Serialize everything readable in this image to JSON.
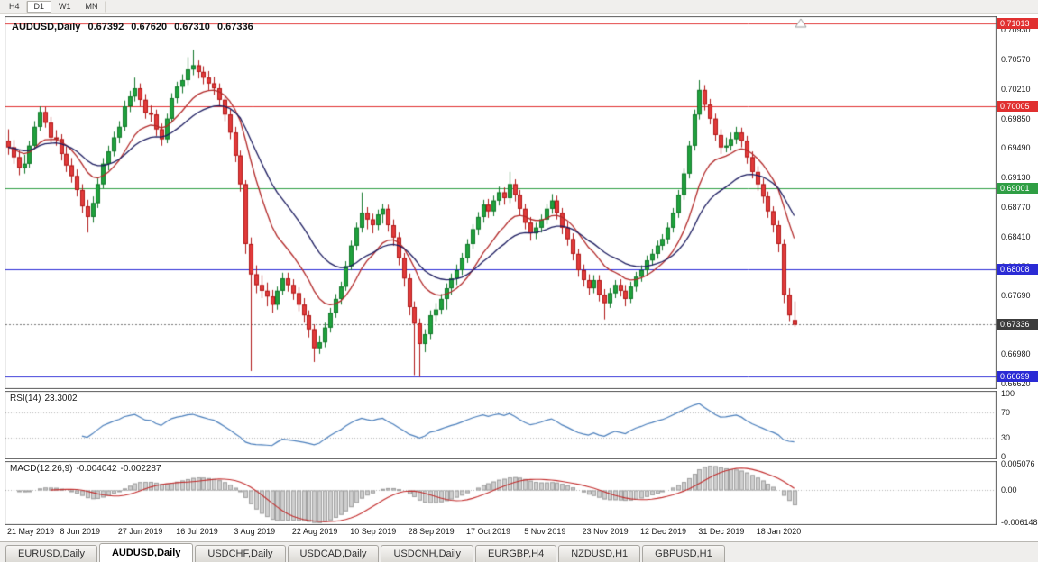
{
  "toolbar": {
    "timeframes": [
      "H4",
      "D1",
      "W1",
      "MN"
    ],
    "active": "D1"
  },
  "chart": {
    "symbol_line": {
      "symbol": "AUDUSD,Daily",
      "open": "0.67392",
      "high": "0.67620",
      "low": "0.67310",
      "close": "0.67336"
    }
  },
  "chart_data": {
    "type": "candlestick",
    "title": "AUDUSD,Daily",
    "y_range": [
      0.6655,
      0.711
    ],
    "y_ticks": [
      "0.70930",
      "0.70570",
      "0.70210",
      "0.69850",
      "0.69490",
      "0.69130",
      "0.68770",
      "0.68410",
      "0.68050",
      "0.67690",
      "0.67330",
      "0.66980",
      "0.66620"
    ],
    "x_labels": [
      {
        "label": "21 May 2019",
        "bar": 0
      },
      {
        "label": "8 Jun 2019",
        "bar": 10
      },
      {
        "label": "27 Jun 2019",
        "bar": 21
      },
      {
        "label": "16 Jul 2019",
        "bar": 32
      },
      {
        "label": "3 Aug 2019",
        "bar": 43
      },
      {
        "label": "22 Aug 2019",
        "bar": 54
      },
      {
        "label": "10 Sep 2019",
        "bar": 65
      },
      {
        "label": "28 Sep 2019",
        "bar": 76
      },
      {
        "label": "17 Oct 2019",
        "bar": 87
      },
      {
        "label": "5 Nov 2019",
        "bar": 98
      },
      {
        "label": "23 Nov 2019",
        "bar": 109
      },
      {
        "label": "12 Dec 2019",
        "bar": 120
      },
      {
        "label": "31 Dec 2019",
        "bar": 131
      },
      {
        "label": "18 Jan 2020",
        "bar": 142
      }
    ],
    "colors": {
      "up": "#1fa23d",
      "up_border": "#12772a",
      "down": "#e13b3b",
      "down_border": "#b01818"
    },
    "levels": [
      {
        "price": 0.71013,
        "label": "0.71013",
        "color": "#e03030"
      },
      {
        "price": 0.70005,
        "label": "0.70005",
        "color": "#e03030"
      },
      {
        "price": 0.69001,
        "label": "0.69001",
        "color": "#2f9e44"
      },
      {
        "price": 0.68008,
        "label": "0.68008",
        "color": "#2b2bd5"
      },
      {
        "price": 0.66699,
        "label": "0.66699",
        "color": "#2b2bd5"
      }
    ],
    "current_price": {
      "price": 0.67336,
      "label": "0.67336",
      "color": "#3c3c3c",
      "line_color": "#777777"
    },
    "moving_averages": [
      {
        "type": "ema",
        "period": 12,
        "color": "#b22828"
      },
      {
        "type": "ema",
        "period": 24,
        "color": "#1c1c60"
      }
    ],
    "subcharts": [
      {
        "type": "line",
        "name": "rsi",
        "label": "RSI(14)",
        "value": "23.3002",
        "period": 14,
        "levels": [
          70,
          30
        ],
        "range": [
          0,
          100
        ],
        "y_ticks": [
          "100",
          "70",
          "30",
          "0"
        ],
        "color": "#4a7ebb"
      },
      {
        "type": "macd",
        "name": "macd",
        "label": "MACD(12,26,9)",
        "value_main": "-0.004042",
        "value_signal": "-0.002287",
        "params": [
          12,
          26,
          9
        ],
        "range": [
          -0.006148,
          0.005076
        ],
        "y_ticks": [
          "0.005076",
          "0.00",
          "-0.006148"
        ],
        "hist_color": "#cfcfcf",
        "hist_border": "#a0a0a0",
        "signal_color": "#c22b2b"
      }
    ],
    "candles": [
      [
        0.6958,
        0.6972,
        0.6941,
        0.695
      ],
      [
        0.695,
        0.6959,
        0.693,
        0.6938
      ],
      [
        0.6938,
        0.6946,
        0.6916,
        0.6925
      ],
      [
        0.6925,
        0.6941,
        0.6918,
        0.693
      ],
      [
        0.693,
        0.6958,
        0.6925,
        0.6952
      ],
      [
        0.6952,
        0.6982,
        0.6948,
        0.6975
      ],
      [
        0.6975,
        0.7,
        0.697,
        0.6993
      ],
      [
        0.6993,
        0.6999,
        0.6974,
        0.698
      ],
      [
        0.698,
        0.6987,
        0.6955,
        0.6962
      ],
      [
        0.6962,
        0.6971,
        0.6952,
        0.696
      ],
      [
        0.696,
        0.6966,
        0.6934,
        0.6942
      ],
      [
        0.6942,
        0.6951,
        0.692,
        0.6928
      ],
      [
        0.6928,
        0.6937,
        0.6907,
        0.6915
      ],
      [
        0.6915,
        0.6923,
        0.689,
        0.6898
      ],
      [
        0.6898,
        0.6905,
        0.687,
        0.6878
      ],
      [
        0.6878,
        0.6886,
        0.6846,
        0.6865
      ],
      [
        0.6865,
        0.689,
        0.6858,
        0.6882
      ],
      [
        0.6882,
        0.6912,
        0.6876,
        0.6905
      ],
      [
        0.6905,
        0.6937,
        0.69,
        0.693
      ],
      [
        0.693,
        0.6952,
        0.6922,
        0.6945
      ],
      [
        0.6945,
        0.6969,
        0.6939,
        0.6962
      ],
      [
        0.6962,
        0.6982,
        0.6955,
        0.6975
      ],
      [
        0.6975,
        0.7007,
        0.697,
        0.7
      ],
      [
        0.7,
        0.7019,
        0.6993,
        0.7012
      ],
      [
        0.7012,
        0.7035,
        0.7006,
        0.7022
      ],
      [
        0.7022,
        0.7028,
        0.7,
        0.7008
      ],
      [
        0.7008,
        0.7015,
        0.6985,
        0.6992
      ],
      [
        0.6992,
        0.7001,
        0.6981,
        0.699
      ],
      [
        0.699,
        0.6996,
        0.6964,
        0.6972
      ],
      [
        0.6972,
        0.6979,
        0.6952,
        0.696
      ],
      [
        0.696,
        0.6991,
        0.6955,
        0.6985
      ],
      [
        0.6985,
        0.7016,
        0.698,
        0.701
      ],
      [
        0.701,
        0.703,
        0.7004,
        0.7024
      ],
      [
        0.7024,
        0.7039,
        0.7016,
        0.7032
      ],
      [
        0.7032,
        0.706,
        0.7026,
        0.7045
      ],
      [
        0.7045,
        0.7069,
        0.7038,
        0.705
      ],
      [
        0.705,
        0.7056,
        0.7034,
        0.7042
      ],
      [
        0.7042,
        0.7049,
        0.7027,
        0.7035
      ],
      [
        0.7035,
        0.7043,
        0.702,
        0.7028
      ],
      [
        0.7028,
        0.7036,
        0.7014,
        0.7022
      ],
      [
        0.7022,
        0.7028,
        0.7,
        0.7008
      ],
      [
        0.7008,
        0.7014,
        0.6982,
        0.699
      ],
      [
        0.699,
        0.6996,
        0.696,
        0.6968
      ],
      [
        0.6968,
        0.6975,
        0.6932,
        0.694
      ],
      [
        0.694,
        0.6946,
        0.6896,
        0.6905
      ],
      [
        0.6905,
        0.691,
        0.682,
        0.6832
      ],
      [
        0.6832,
        0.684,
        0.6677,
        0.6795
      ],
      [
        0.6795,
        0.6806,
        0.6772,
        0.6782
      ],
      [
        0.6782,
        0.6794,
        0.6766,
        0.6775
      ],
      [
        0.6775,
        0.6785,
        0.6756,
        0.6768
      ],
      [
        0.6768,
        0.6776,
        0.6748,
        0.6758
      ],
      [
        0.6758,
        0.678,
        0.6752,
        0.6775
      ],
      [
        0.6775,
        0.6797,
        0.677,
        0.679
      ],
      [
        0.679,
        0.6797,
        0.6774,
        0.6782
      ],
      [
        0.6782,
        0.6789,
        0.6764,
        0.6772
      ],
      [
        0.6772,
        0.6779,
        0.675,
        0.6758
      ],
      [
        0.6758,
        0.6766,
        0.6736,
        0.6745
      ],
      [
        0.6745,
        0.6751,
        0.6718,
        0.6728
      ],
      [
        0.6728,
        0.6734,
        0.6688,
        0.6705
      ],
      [
        0.6705,
        0.672,
        0.6698,
        0.6712
      ],
      [
        0.6712,
        0.6736,
        0.6706,
        0.673
      ],
      [
        0.673,
        0.6754,
        0.6724,
        0.6748
      ],
      [
        0.6748,
        0.6771,
        0.6742,
        0.6765
      ],
      [
        0.6765,
        0.6786,
        0.6758,
        0.678
      ],
      [
        0.678,
        0.6811,
        0.6775,
        0.6805
      ],
      [
        0.6805,
        0.6836,
        0.68,
        0.683
      ],
      [
        0.683,
        0.6858,
        0.6824,
        0.6852
      ],
      [
        0.6852,
        0.6895,
        0.6846,
        0.687
      ],
      [
        0.687,
        0.6877,
        0.685,
        0.6862
      ],
      [
        0.6862,
        0.6869,
        0.6845,
        0.6855
      ],
      [
        0.6855,
        0.6874,
        0.6849,
        0.6868
      ],
      [
        0.6868,
        0.6881,
        0.6857,
        0.6875
      ],
      [
        0.6875,
        0.688,
        0.6847,
        0.6855
      ],
      [
        0.6855,
        0.6862,
        0.683,
        0.684
      ],
      [
        0.684,
        0.6846,
        0.6806,
        0.6815
      ],
      [
        0.6815,
        0.6821,
        0.678,
        0.679
      ],
      [
        0.679,
        0.6796,
        0.6745,
        0.6755
      ],
      [
        0.6755,
        0.6762,
        0.6672,
        0.6735
      ],
      [
        0.6735,
        0.6741,
        0.667,
        0.671
      ],
      [
        0.671,
        0.6728,
        0.67,
        0.6722
      ],
      [
        0.6722,
        0.6751,
        0.6716,
        0.6745
      ],
      [
        0.6745,
        0.676,
        0.6738,
        0.6752
      ],
      [
        0.6752,
        0.6771,
        0.6746,
        0.6765
      ],
      [
        0.6765,
        0.6784,
        0.6752,
        0.6778
      ],
      [
        0.6778,
        0.6796,
        0.677,
        0.679
      ],
      [
        0.679,
        0.6807,
        0.6782,
        0.68
      ],
      [
        0.68,
        0.6821,
        0.6794,
        0.6815
      ],
      [
        0.6815,
        0.6838,
        0.6809,
        0.6832
      ],
      [
        0.6832,
        0.6856,
        0.6826,
        0.685
      ],
      [
        0.685,
        0.6871,
        0.6843,
        0.6865
      ],
      [
        0.6865,
        0.6886,
        0.6858,
        0.688
      ],
      [
        0.688,
        0.6887,
        0.6864,
        0.6872
      ],
      [
        0.6872,
        0.6891,
        0.6866,
        0.6885
      ],
      [
        0.6885,
        0.6902,
        0.6879,
        0.6895
      ],
      [
        0.6895,
        0.6901,
        0.688,
        0.6888
      ],
      [
        0.6888,
        0.692,
        0.6882,
        0.6905
      ],
      [
        0.6905,
        0.6911,
        0.6884,
        0.6892
      ],
      [
        0.6892,
        0.6898,
        0.6867,
        0.6875
      ],
      [
        0.6875,
        0.6881,
        0.685,
        0.6858
      ],
      [
        0.6858,
        0.6865,
        0.6836,
        0.6845
      ],
      [
        0.6845,
        0.6858,
        0.6838,
        0.6852
      ],
      [
        0.6852,
        0.6868,
        0.6846,
        0.6862
      ],
      [
        0.6862,
        0.6881,
        0.6856,
        0.6875
      ],
      [
        0.6875,
        0.6893,
        0.6869,
        0.6885
      ],
      [
        0.6885,
        0.6891,
        0.6862,
        0.687
      ],
      [
        0.687,
        0.6876,
        0.6844,
        0.6852
      ],
      [
        0.6852,
        0.6859,
        0.683,
        0.6838
      ],
      [
        0.6838,
        0.6845,
        0.6812,
        0.682
      ],
      [
        0.682,
        0.6826,
        0.6792,
        0.68
      ],
      [
        0.68,
        0.6807,
        0.678,
        0.6788
      ],
      [
        0.6788,
        0.6795,
        0.677,
        0.6778
      ],
      [
        0.6778,
        0.6794,
        0.6772,
        0.6788
      ],
      [
        0.6788,
        0.6794,
        0.6762,
        0.677
      ],
      [
        0.677,
        0.6777,
        0.674,
        0.676
      ],
      [
        0.676,
        0.6778,
        0.6754,
        0.6772
      ],
      [
        0.6772,
        0.6788,
        0.6766,
        0.6782
      ],
      [
        0.6782,
        0.6789,
        0.6768,
        0.6775
      ],
      [
        0.6775,
        0.6782,
        0.6756,
        0.6765
      ],
      [
        0.6765,
        0.6786,
        0.676,
        0.678
      ],
      [
        0.678,
        0.6798,
        0.6774,
        0.6792
      ],
      [
        0.6792,
        0.6806,
        0.6786,
        0.68
      ],
      [
        0.68,
        0.6818,
        0.6794,
        0.6812
      ],
      [
        0.6812,
        0.6826,
        0.6806,
        0.682
      ],
      [
        0.682,
        0.6836,
        0.6814,
        0.683
      ],
      [
        0.683,
        0.6844,
        0.6824,
        0.6838
      ],
      [
        0.6838,
        0.6858,
        0.6832,
        0.6852
      ],
      [
        0.6852,
        0.6876,
        0.6846,
        0.687
      ],
      [
        0.687,
        0.6898,
        0.6864,
        0.6892
      ],
      [
        0.6892,
        0.6924,
        0.6886,
        0.6918
      ],
      [
        0.6918,
        0.6958,
        0.6912,
        0.6952
      ],
      [
        0.6952,
        0.6996,
        0.6946,
        0.699
      ],
      [
        0.699,
        0.7032,
        0.6984,
        0.702
      ],
      [
        0.702,
        0.7026,
        0.6995,
        0.7002
      ],
      [
        0.7002,
        0.7009,
        0.6978,
        0.6985
      ],
      [
        0.6985,
        0.6991,
        0.6958,
        0.6965
      ],
      [
        0.6965,
        0.6972,
        0.6942,
        0.695
      ],
      [
        0.695,
        0.6962,
        0.6944,
        0.6952
      ],
      [
        0.6952,
        0.6968,
        0.6946,
        0.696
      ],
      [
        0.696,
        0.6975,
        0.6954,
        0.6968
      ],
      [
        0.6968,
        0.6974,
        0.695,
        0.6958
      ],
      [
        0.6958,
        0.6964,
        0.693,
        0.6938
      ],
      [
        0.6938,
        0.6945,
        0.6912,
        0.692
      ],
      [
        0.692,
        0.6927,
        0.6897,
        0.6905
      ],
      [
        0.6905,
        0.6912,
        0.6882,
        0.689
      ],
      [
        0.689,
        0.6896,
        0.6864,
        0.6872
      ],
      [
        0.6872,
        0.6878,
        0.6846,
        0.6855
      ],
      [
        0.6855,
        0.6861,
        0.6822,
        0.6832
      ],
      [
        0.6832,
        0.6838,
        0.676,
        0.677
      ],
      [
        0.677,
        0.6778,
        0.6738,
        0.6745
      ],
      [
        0.67392,
        0.6762,
        0.6731,
        0.67336
      ]
    ]
  },
  "bottom_tabs": {
    "items": [
      "EURUSD,Daily",
      "AUDUSD,Daily",
      "USDCHF,Daily",
      "USDCAD,Daily",
      "USDCNH,Daily",
      "EURGBP,H4",
      "NZDUSD,H1",
      "GBPUSD,H1"
    ],
    "active_index": 1
  }
}
